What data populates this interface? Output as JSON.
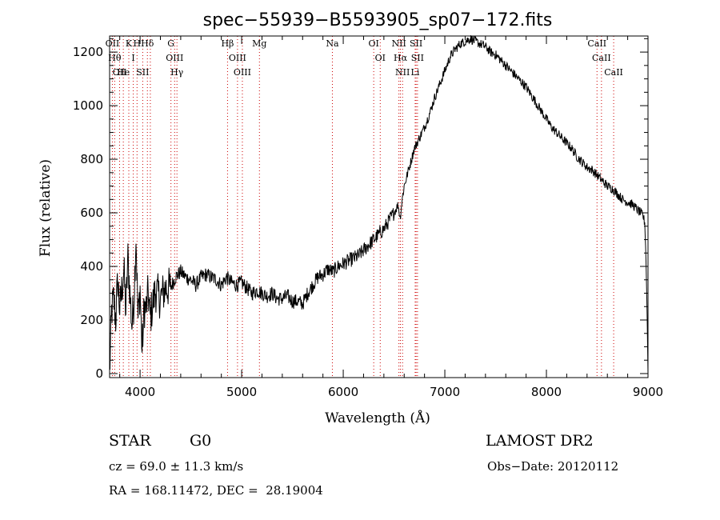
{
  "chart_data": {
    "type": "line",
    "title": "spec−55939−B5593905_sp07−172.fits",
    "xlabel": "Wavelength (Å)",
    "ylabel": "Flux (relative)",
    "xlim": [
      3700,
      9000
    ],
    "ylim": [
      -15,
      1260
    ],
    "x_ticks": [
      4000,
      5000,
      6000,
      7000,
      8000,
      9000
    ],
    "y_ticks": [
      0,
      200,
      400,
      600,
      800,
      1000,
      1200
    ],
    "grid": false,
    "series_color": "#000000",
    "line_marker_color": "#cc0000",
    "series": [
      {
        "x": [
          3700,
          3720,
          3740,
          3760,
          3780,
          3800,
          3820,
          3840,
          3860,
          3880,
          3900,
          3920,
          3940,
          3960,
          3980,
          4000,
          4020,
          4040,
          4060,
          4080,
          4100,
          4150,
          4200,
          4250,
          4300,
          4350,
          4400,
          4450,
          4500,
          4550,
          4600,
          4650,
          4700,
          4750,
          4800,
          4850,
          4900,
          4950,
          5000,
          5050,
          5100,
          5150,
          5200,
          5250,
          5300,
          5350,
          5400,
          5450,
          5500,
          5550,
          5600,
          5650,
          5700,
          5750,
          5800,
          5850,
          5900,
          5950,
          6000,
          6050,
          6100,
          6150,
          6200,
          6250,
          6300,
          6350,
          6400,
          6450,
          6500,
          6540,
          6560,
          6580,
          6600,
          6650,
          6700,
          6750,
          6800,
          6850,
          6900,
          6950,
          7000,
          7050,
          7100,
          7150,
          7200,
          7250,
          7300,
          7350,
          7400,
          7450,
          7500,
          7550,
          7600,
          7650,
          7700,
          7750,
          7800,
          7850,
          7900,
          7950,
          8000,
          8050,
          8100,
          8150,
          8200,
          8250,
          8300,
          8350,
          8400,
          8450,
          8500,
          8550,
          8600,
          8650,
          8700,
          8750,
          8800,
          8850,
          8900,
          8950,
          8970,
          8980,
          8990,
          9000
        ],
        "y": [
          0,
          230,
          280,
          200,
          350,
          240,
          310,
          390,
          230,
          430,
          300,
          180,
          280,
          520,
          200,
          320,
          80,
          250,
          240,
          300,
          210,
          310,
          280,
          320,
          320,
          360,
          380,
          360,
          350,
          330,
          360,
          370,
          360,
          350,
          330,
          360,
          340,
          330,
          340,
          320,
          300,
          310,
          300,
          290,
          300,
          280,
          280,
          290,
          270,
          270,
          260,
          300,
          330,
          360,
          370,
          390,
          380,
          400,
          410,
          420,
          430,
          440,
          460,
          480,
          500,
          520,
          540,
          570,
          600,
          630,
          580,
          650,
          700,
          770,
          840,
          880,
          920,
          970,
          1030,
          1080,
          1130,
          1180,
          1210,
          1230,
          1240,
          1250,
          1240,
          1230,
          1220,
          1200,
          1190,
          1170,
          1150,
          1130,
          1110,
          1090,
          1070,
          1040,
          1010,
          980,
          950,
          920,
          900,
          880,
          860,
          840,
          810,
          790,
          770,
          760,
          740,
          720,
          700,
          690,
          670,
          650,
          640,
          630,
          610,
          590,
          560,
          420,
          250,
          0
        ]
      }
    ],
    "spectral_lines": [
      {
        "x": 3727,
        "label": "OII"
      },
      {
        "x": 3750,
        "label": "Hθ"
      },
      {
        "x": 3798,
        "label": "OII"
      },
      {
        "x": 3835,
        "label": "He"
      },
      {
        "x": 3889,
        "label": "K"
      },
      {
        "x": 3933,
        "label": "I"
      },
      {
        "x": 3970,
        "label": "H"
      },
      {
        "x": 4026,
        "label": "SII"
      },
      {
        "x": 4072,
        "label": "Hδ"
      },
      {
        "x": 4101,
        "label": ""
      },
      {
        "x": 4304,
        "label": "G"
      },
      {
        "x": 4340,
        "label": "OIII"
      },
      {
        "x": 4363,
        "label": "Hγ"
      },
      {
        "x": 4861,
        "label": "Hβ"
      },
      {
        "x": 4959,
        "label": "OIII"
      },
      {
        "x": 5007,
        "label": "OIII"
      },
      {
        "x": 5175,
        "label": "Mg"
      },
      {
        "x": 5893,
        "label": "Na"
      },
      {
        "x": 6300,
        "label": "OI"
      },
      {
        "x": 6364,
        "label": "OI"
      },
      {
        "x": 6548,
        "label": "NII"
      },
      {
        "x": 6563,
        "label": "Hα"
      },
      {
        "x": 6584,
        "label": "NII"
      },
      {
        "x": 6717,
        "label": "SII"
      },
      {
        "x": 6731,
        "label": "SII"
      },
      {
        "x": 6708,
        "label": "Li"
      },
      {
        "x": 8498,
        "label": "CaII"
      },
      {
        "x": 8542,
        "label": "CaII"
      },
      {
        "x": 8662,
        "label": "CaII"
      }
    ]
  },
  "info": {
    "object_class": "STAR",
    "subclass": "G0",
    "survey": "LAMOST DR2",
    "redshift": "cz = 69.0 ± 11.3 km/s",
    "obs_date": "Obs−Date: 20120112",
    "coords": "RA = 168.11472, DEC =  28.19004"
  }
}
